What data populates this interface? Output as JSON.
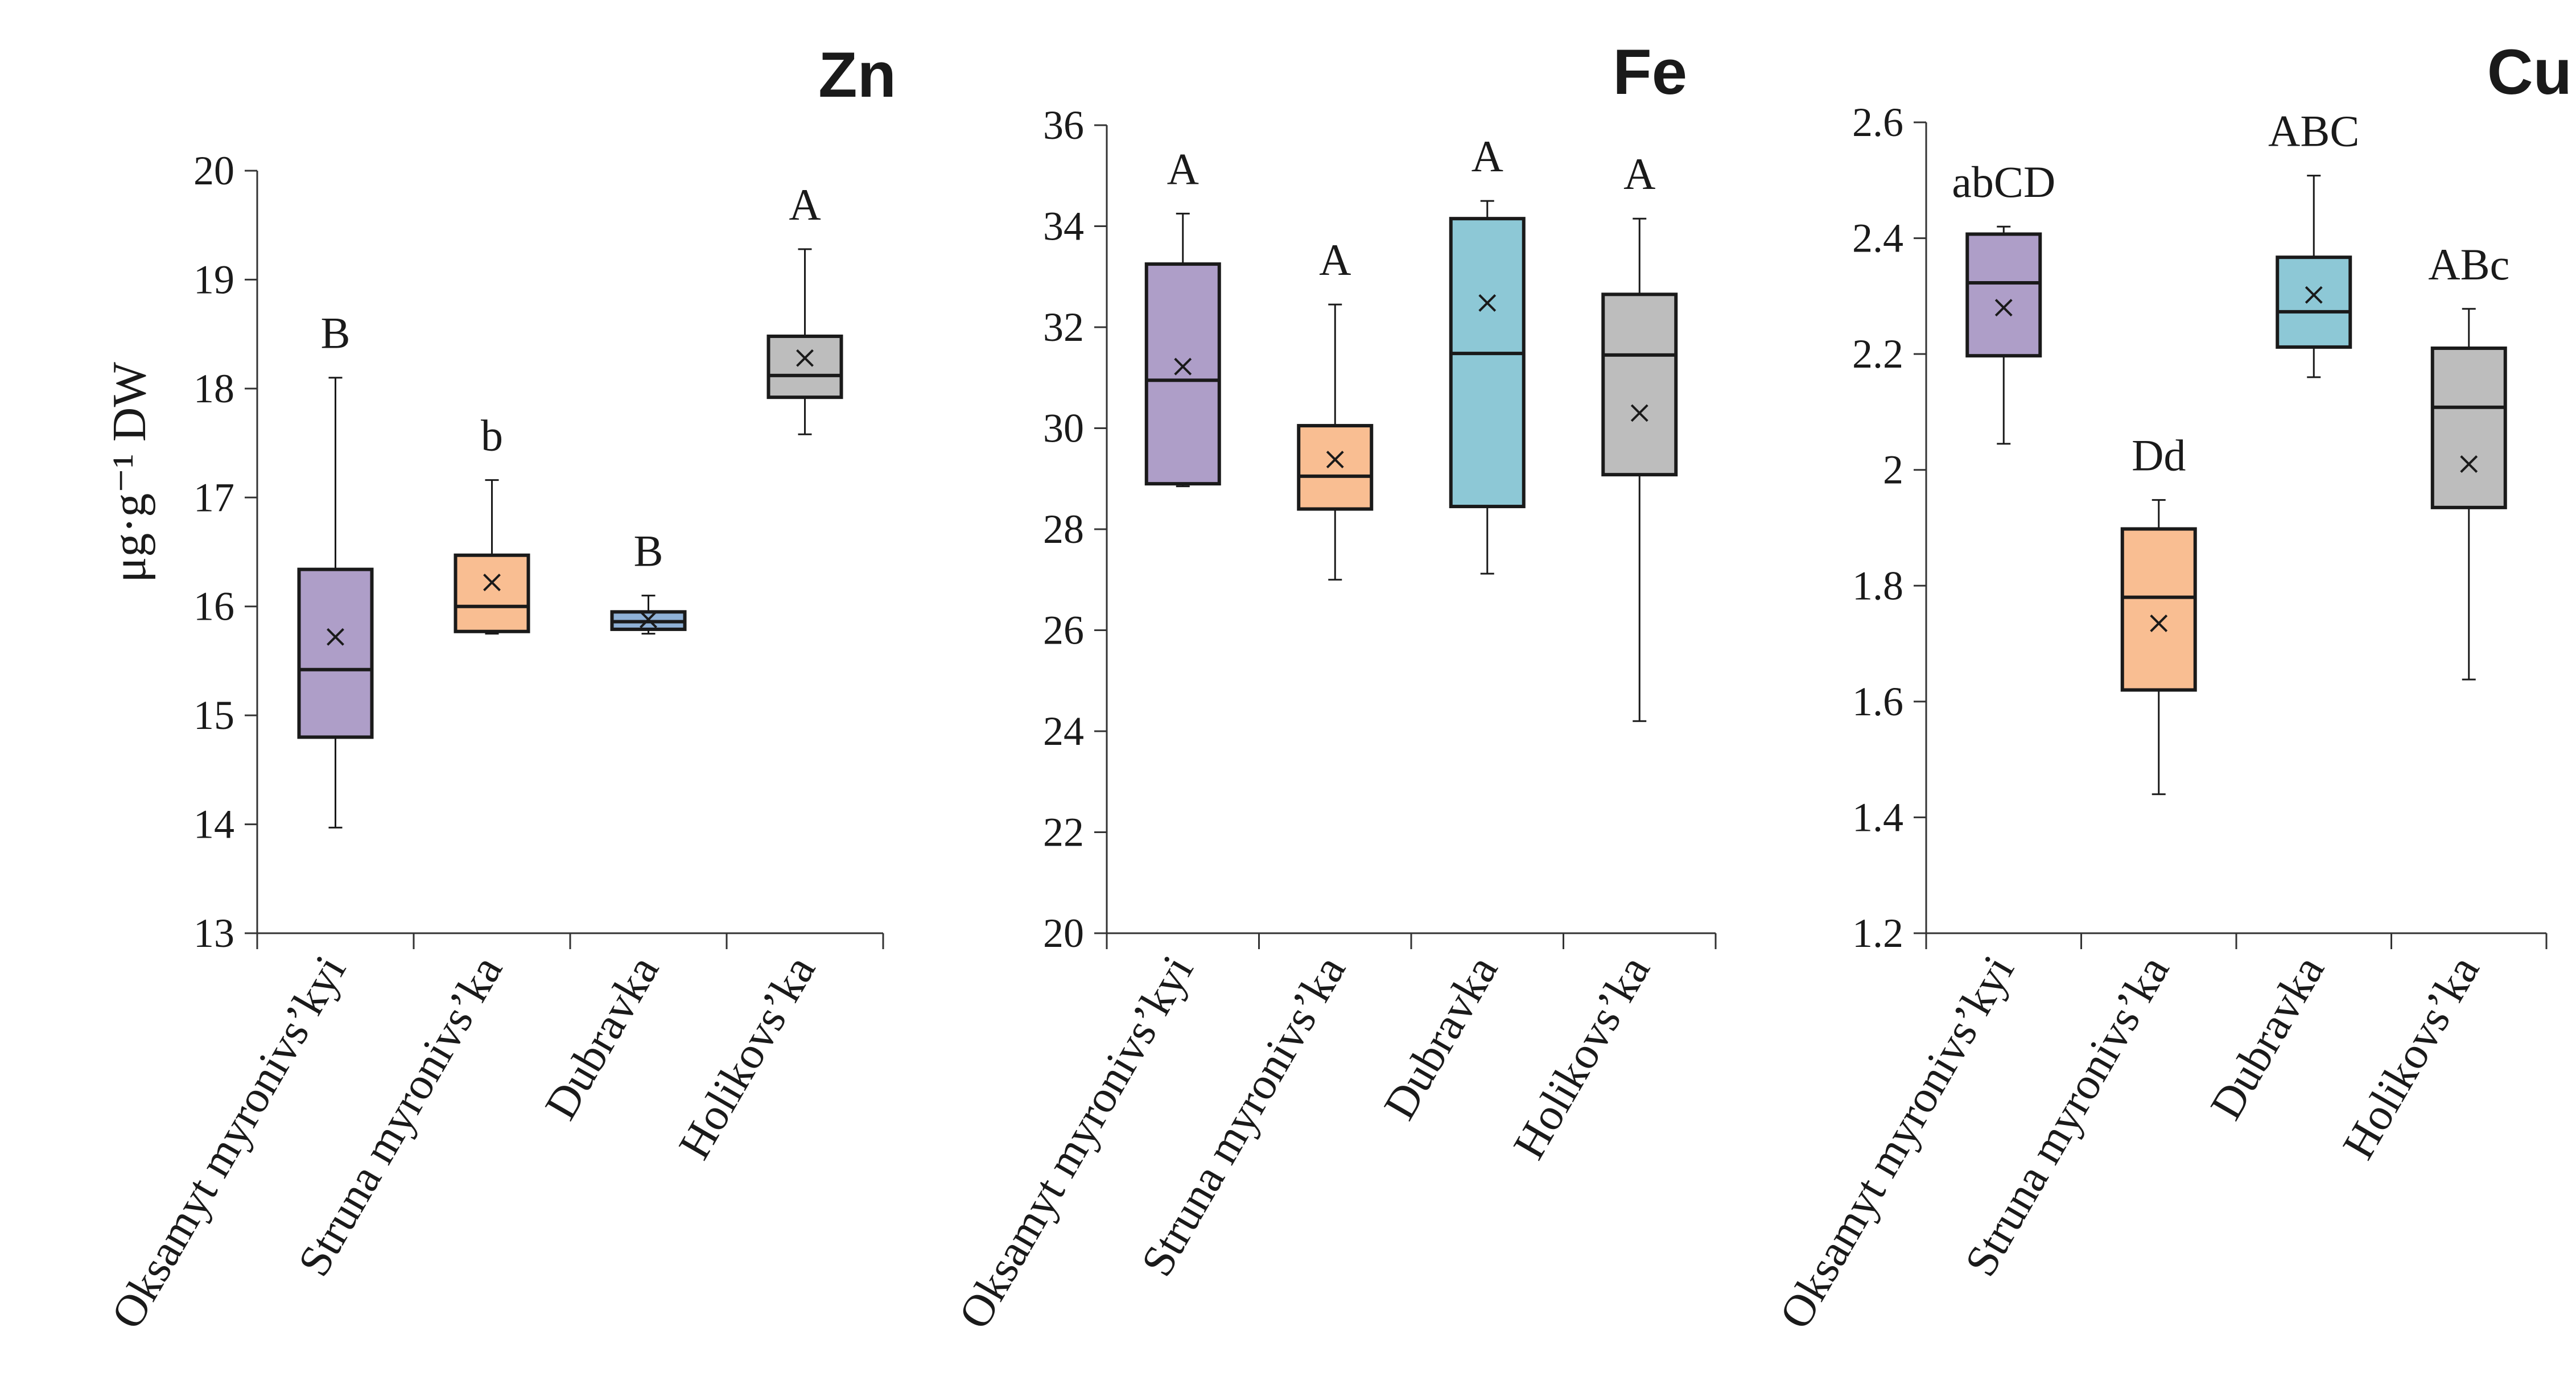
{
  "figure": {
    "ylabel": "μg·g⁻¹ DW"
  },
  "chart_data": [
    {
      "type": "box",
      "title": "Zn",
      "ylabel": "μg·g⁻¹ DW",
      "ylim": [
        13,
        20
      ],
      "yticks": [
        13,
        14,
        15,
        16,
        17,
        18,
        19,
        20
      ],
      "categories": [
        "Oksamyt myronivs’kyi",
        "Struna myronivs’ka",
        "Dubravka",
        "Holikovs’ka"
      ],
      "boxes": [
        {
          "min": 13.97,
          "q1": 14.8,
          "median": 15.42,
          "q3": 16.34,
          "max": 18.1,
          "mean": 15.72,
          "letter": "B",
          "color": "#ae9ec8",
          "edge": "#1a1a1a"
        },
        {
          "min": 15.75,
          "q1": 15.77,
          "median": 16.0,
          "q3": 16.47,
          "max": 17.16,
          "mean": 16.22,
          "letter": "b",
          "color": "#f9be92",
          "edge": "#1a1a1a"
        },
        {
          "min": 15.75,
          "q1": 15.79,
          "median": 15.86,
          "q3": 15.95,
          "max": 16.1,
          "mean": 15.88,
          "letter": "B",
          "color": "#8fb1d6",
          "edge": "#1a1a1a"
        },
        {
          "min": 17.58,
          "q1": 17.92,
          "median": 18.12,
          "q3": 18.48,
          "max": 19.28,
          "mean": 18.28,
          "letter": "A",
          "color": "#bdbdbd",
          "edge": "#1a1a1a"
        }
      ]
    },
    {
      "type": "box",
      "title": "Fe",
      "ylim": [
        20,
        36
      ],
      "yticks": [
        20,
        22,
        24,
        26,
        28,
        30,
        32,
        34,
        36
      ],
      "categories": [
        "Oksamyt myronivs’kyi",
        "Struna myronivs’ka",
        "Dubravka",
        "Holikovs’ka"
      ],
      "boxes": [
        {
          "min": 28.85,
          "q1": 28.9,
          "median": 30.95,
          "q3": 33.25,
          "max": 34.25,
          "mean": 31.22,
          "letter": "A",
          "color": "#ae9ec8",
          "edge": "#3d5da8"
        },
        {
          "min": 27.0,
          "q1": 28.4,
          "median": 29.05,
          "q3": 30.05,
          "max": 32.45,
          "mean": 29.38,
          "letter": "A",
          "color": "#f9be92",
          "edge": "#1a1a1a"
        },
        {
          "min": 27.12,
          "q1": 28.45,
          "median": 31.48,
          "q3": 34.15,
          "max": 34.5,
          "mean": 32.48,
          "letter": "A",
          "color": "#8dc8d6",
          "edge": "#1a1a1a"
        },
        {
          "min": 24.2,
          "q1": 29.08,
          "median": 31.45,
          "q3": 32.65,
          "max": 34.15,
          "mean": 30.3,
          "letter": "A",
          "color": "#bdbdbd",
          "edge": "#1a1a1a"
        }
      ]
    },
    {
      "type": "box",
      "title": "Cu",
      "ylim": [
        1.2,
        2.6
      ],
      "yticks": [
        1.2,
        1.4,
        1.6,
        1.8,
        2,
        2.2,
        2.4,
        2.6
      ],
      "ytick_labels": [
        "1.2",
        "1.4",
        "1.6",
        "1.8",
        "2",
        "2.2",
        "2.4",
        "2.6"
      ],
      "categories": [
        "Oksamyt myronivs’kyi",
        "Struna myronivs’ka",
        "Dubravka",
        "Holikovs’ka"
      ],
      "boxes": [
        {
          "min": 2.045,
          "q1": 2.197,
          "median": 2.323,
          "q3": 2.407,
          "max": 2.42,
          "mean": 2.28,
          "letter": "abCD",
          "color": "#ae9ec8",
          "edge": "#1a1a1a"
        },
        {
          "min": 1.44,
          "q1": 1.62,
          "median": 1.78,
          "q3": 1.898,
          "max": 1.948,
          "mean": 1.735,
          "letter": "Dd",
          "color": "#f9be92",
          "edge": "#1a1a1a"
        },
        {
          "min": 2.16,
          "q1": 2.212,
          "median": 2.273,
          "q3": 2.367,
          "max": 2.508,
          "mean": 2.302,
          "letter": "ABC",
          "color": "#8dc8d6",
          "edge": "#1a1a1a"
        },
        {
          "min": 1.638,
          "q1": 1.935,
          "median": 2.108,
          "q3": 2.21,
          "max": 2.278,
          "mean": 2.01,
          "letter": "ABc",
          "color": "#bdbdbd",
          "edge": "#1a1a1a"
        }
      ]
    }
  ]
}
